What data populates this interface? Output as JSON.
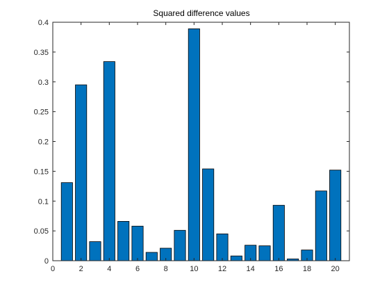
{
  "chart_data": {
    "type": "bar",
    "title": "Squared difference values",
    "xlabel": "",
    "ylabel": "",
    "categories": [
      1,
      2,
      3,
      4,
      5,
      6,
      7,
      8,
      9,
      10,
      11,
      12,
      13,
      14,
      15,
      16,
      17,
      18,
      19,
      20
    ],
    "values": [
      0.131,
      0.295,
      0.032,
      0.334,
      0.066,
      0.058,
      0.014,
      0.021,
      0.051,
      0.389,
      0.154,
      0.045,
      0.008,
      0.026,
      0.025,
      0.093,
      0.003,
      0.018,
      0.117,
      0.152
    ],
    "xlim": [
      0,
      21
    ],
    "ylim": [
      0,
      0.4
    ],
    "xticks": [
      0,
      2,
      4,
      6,
      8,
      10,
      12,
      14,
      16,
      18,
      20
    ],
    "yticks": [
      0,
      0.05,
      0.1,
      0.15,
      0.2,
      0.25,
      0.3,
      0.35,
      0.4
    ],
    "xtick_labels": [
      "0",
      "2",
      "4",
      "6",
      "8",
      "10",
      "12",
      "14",
      "16",
      "18",
      "20"
    ],
    "ytick_labels": [
      "0",
      "0.05",
      "0.1",
      "0.15",
      "0.2",
      "0.25",
      "0.3",
      "0.35",
      "0.4"
    ],
    "bar_color": "#0072BD",
    "bar_edge_color": "#000000",
    "axis_color": "#262626",
    "grid": false,
    "legend": "none"
  }
}
